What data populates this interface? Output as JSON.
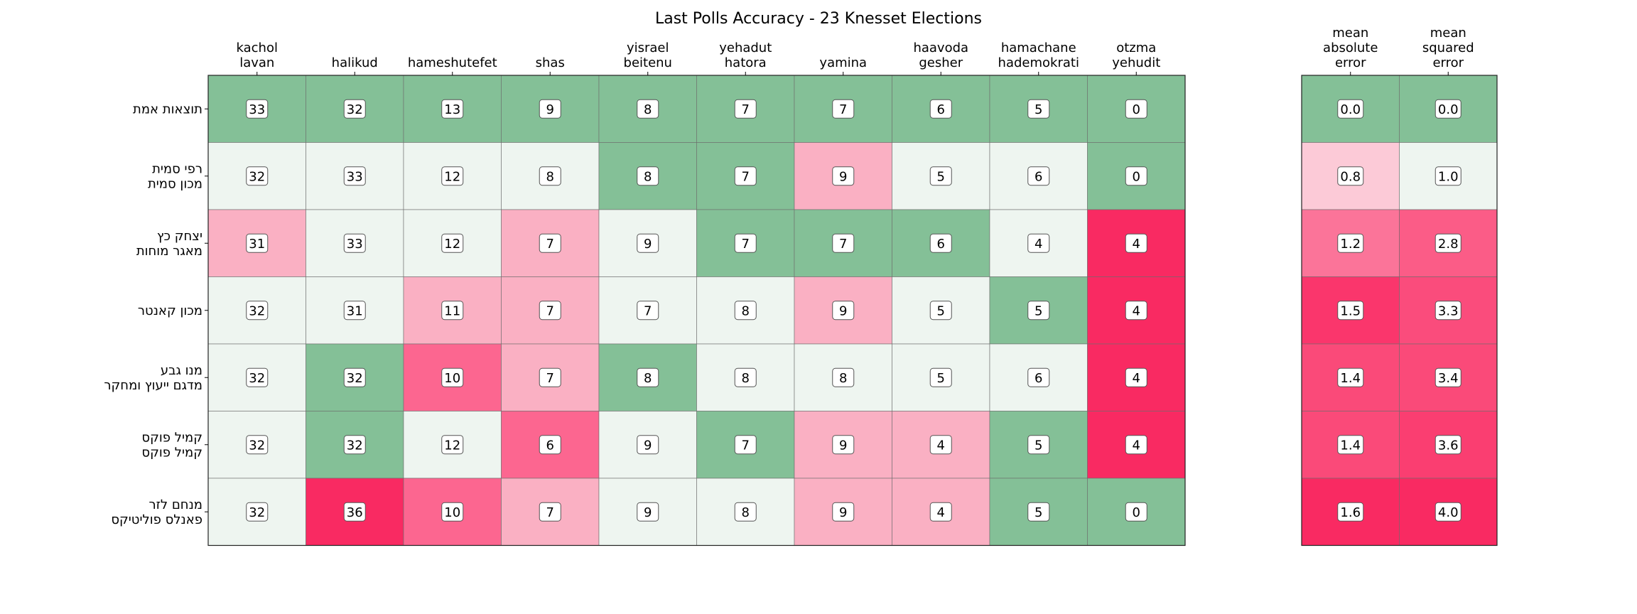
{
  "chart_data": {
    "type": "heatmap",
    "title": "Last Polls Accuracy - 23 Knesset Elections",
    "columns": [
      [
        "kachol",
        "lavan"
      ],
      [
        "halikud"
      ],
      [
        "hameshutefet"
      ],
      [
        "shas"
      ],
      [
        "yisrael",
        "beitenu"
      ],
      [
        "yehadut",
        "hatora"
      ],
      [
        "yamina"
      ],
      [
        "haavoda",
        "gesher"
      ],
      [
        "hamachane",
        "hademokrati"
      ],
      [
        "otzma",
        "yehudit"
      ]
    ],
    "metric_columns": [
      [
        "mean",
        "absolute",
        "error"
      ],
      [
        "mean",
        "squared",
        "error"
      ]
    ],
    "rows": [
      [
        "תוצאות אמת"
      ],
      [
        "רפי סמית",
        "מכון סמית"
      ],
      [
        "יצחק כץ",
        "מאגר מוחות"
      ],
      [
        "מכון קאנטר"
      ],
      [
        "מנו גבע",
        "מדגם ייעוץ ומחקר"
      ],
      [
        "קמיל פוקס",
        "קמיל פוקס"
      ],
      [
        "מנחם לזר",
        "פאנלס פוליטיקס"
      ]
    ],
    "values": [
      [
        33,
        32,
        13,
        9,
        8,
        7,
        7,
        6,
        5,
        0
      ],
      [
        32,
        33,
        12,
        8,
        8,
        7,
        9,
        5,
        6,
        0
      ],
      [
        31,
        33,
        12,
        7,
        9,
        7,
        7,
        6,
        4,
        4
      ],
      [
        32,
        31,
        11,
        7,
        7,
        8,
        9,
        5,
        5,
        4
      ],
      [
        32,
        32,
        10,
        7,
        8,
        8,
        8,
        5,
        6,
        4
      ],
      [
        32,
        32,
        12,
        6,
        9,
        7,
        9,
        4,
        5,
        4
      ],
      [
        32,
        36,
        10,
        7,
        9,
        8,
        9,
        4,
        5,
        0
      ]
    ],
    "metrics": [
      [
        "0.0",
        "0.0"
      ],
      [
        "0.8",
        "1.0"
      ],
      [
        "1.2",
        "2.8"
      ],
      [
        "1.5",
        "3.3"
      ],
      [
        "1.4",
        "3.4"
      ],
      [
        "1.4",
        "3.6"
      ],
      [
        "1.6",
        "4.0"
      ]
    ],
    "colors": {
      "exact": "#84c097",
      "off_by_1": "#eef5f0",
      "off_by_2": "#fab0c3",
      "off_by_3": "#fc6690",
      "off_by_4_plus": "#f92a62",
      "mae_0_8": "#fccad7",
      "mae_1_2": "#fb7499",
      "mae_1_4": "#fa4a79",
      "mae_1_5": "#fa366c",
      "mae_1_6": "#f92a62",
      "mse_2_8": "#fb5c87",
      "mse_3_3": "#fa4c7c",
      "mse_3_4": "#fa4a79",
      "mse_3_6": "#fa3e71",
      "mse_4_0": "#f92a62"
    }
  }
}
